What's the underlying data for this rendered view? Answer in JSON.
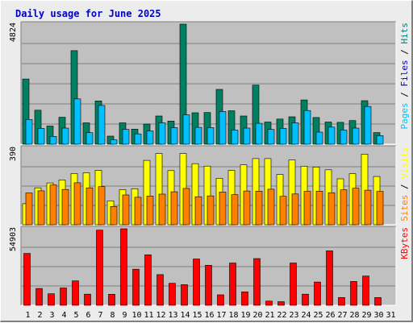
{
  "chart_data": {
    "type": "bar",
    "title": "Daily usage for June 2025",
    "categories": [
      "1",
      "2",
      "3",
      "4",
      "5",
      "6",
      "7",
      "8",
      "9",
      "10",
      "11",
      "12",
      "13",
      "14",
      "15",
      "16",
      "17",
      "18",
      "19",
      "20",
      "21",
      "22",
      "23",
      "24",
      "25",
      "26",
      "27",
      "28",
      "29",
      "30",
      "31"
    ],
    "weekend_days": [
      1,
      7,
      8,
      14,
      15,
      21,
      22,
      28,
      29
    ],
    "weekend_color": "#008040",
    "weekday_color": "#000000",
    "panels": [
      {
        "id": "hits",
        "ylim": [
          0,
          4824
        ],
        "max_label": "4824",
        "ylabel_parts": [
          {
            "text": "Pages",
            "color": "#00c0ff"
          },
          {
            "text": " / ",
            "color": "#000000"
          },
          {
            "text": "Files",
            "color": "#0000cc"
          },
          {
            "text": " / ",
            "color": "#000000"
          },
          {
            "text": "Hits",
            "color": "#008080"
          }
        ],
        "series": [
          {
            "name": "Hits",
            "color": "#008060",
            "values": [
              2618,
              1365,
              727,
              1081,
              3758,
              859,
              1737,
              323,
              859,
              606,
              808,
              1132,
              928,
              4824,
              1263,
              1273,
              2202,
              1344,
              1132,
              2374,
              889,
              1010,
              1101,
              1778,
              1071,
              890,
              879,
              950,
              1747,
              465,
              0
            ]
          },
          {
            "name": "Files",
            "color": "#00c0ff",
            "values": [
              990,
              636,
              313,
              646,
              1818,
              464,
              1556,
              172,
              596,
              414,
              535,
              859,
              667,
              1182,
              676,
              667,
              1313,
              566,
              646,
              838,
              594,
              636,
              859,
              1354,
              485,
              687,
              566,
              646,
              1515,
              343,
              0
            ]
          }
        ]
      },
      {
        "id": "visits",
        "ylim": [
          0,
          390
        ],
        "max_label": "390",
        "ylabel_parts": [
          {
            "text": "Sites",
            "color": "#ff8000"
          },
          {
            "text": " / ",
            "color": "#000000"
          },
          {
            "text": "Visits",
            "color": "#ffff00"
          }
        ],
        "series": [
          {
            "name": "Visits",
            "color": "#ffff00",
            "values": [
              107,
              188,
              213,
              228,
              261,
              265,
              277,
              122,
              178,
              183,
              328,
              363,
              276,
              363,
              311,
              299,
              237,
              277,
              305,
              337,
              337,
              256,
              330,
              298,
              294,
              280,
              234,
              260,
              360,
              246,
              0
            ]
          },
          {
            "name": "Sites",
            "color": "#ff8000",
            "values": [
              162,
              173,
              203,
              180,
              214,
              188,
              194,
              93,
              152,
              140,
              146,
              156,
              168,
              185,
              143,
              147,
              167,
              153,
              172,
              171,
              181,
              145,
              157,
              170,
              171,
              163,
              178,
              186,
              176,
              170,
              0
            ]
          }
        ]
      },
      {
        "id": "kbytes",
        "ylim": [
          0,
          54903
        ],
        "max_label": "54903",
        "ylabel_parts": [
          {
            "text": "KBytes",
            "color": "#ff0000"
          }
        ],
        "series": [
          {
            "name": "KBytes",
            "color": "#ff0000",
            "values": [
              37240,
              12064,
              8270,
              12400,
              17500,
              7950,
              53903,
              7900,
              54903,
              25880,
              36240,
              22020,
              15800,
              14800,
              33250,
              28710,
              7500,
              30350,
              9640,
              33500,
              3000,
              2590,
              30350,
              7950,
              16700,
              39070,
              5530,
              17120,
              21000,
              5530,
              0
            ]
          }
        ]
      }
    ]
  }
}
